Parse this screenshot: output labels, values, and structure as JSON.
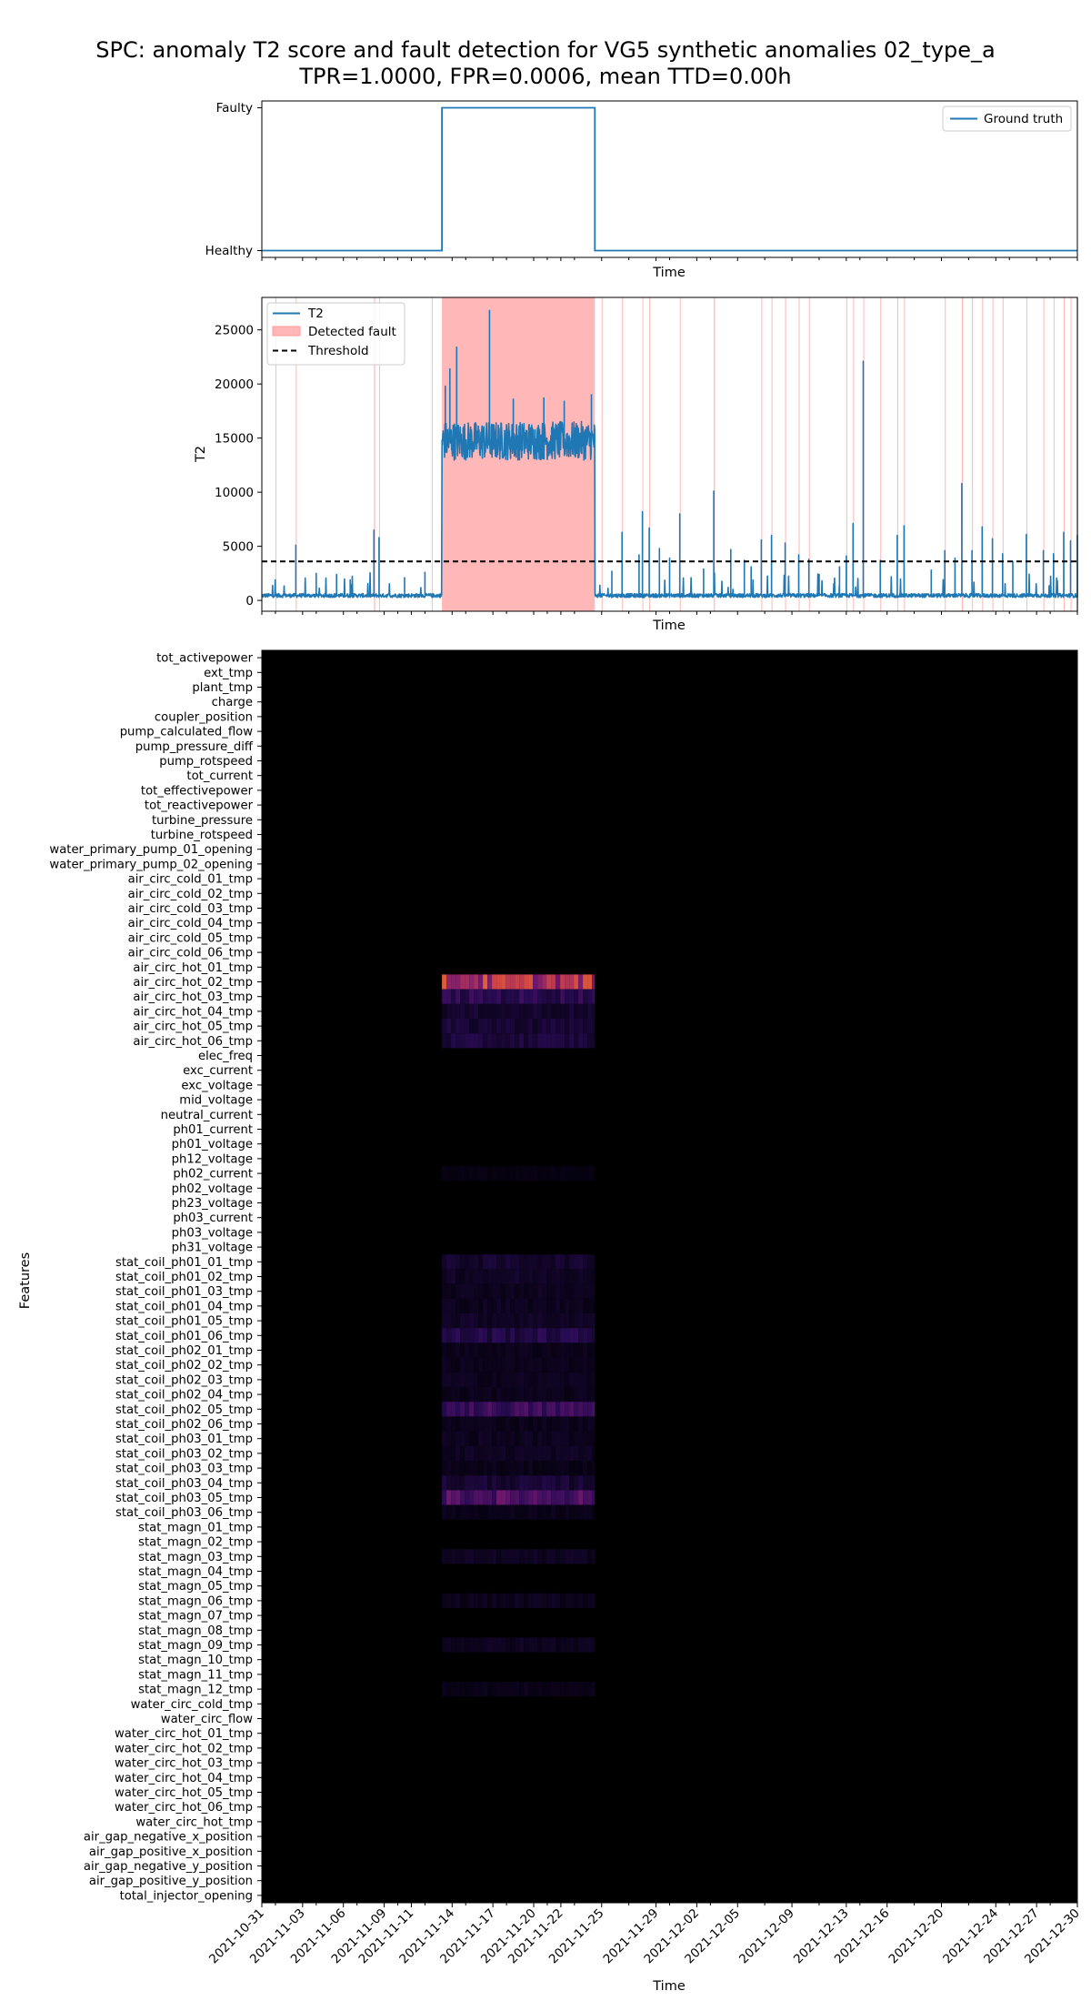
{
  "figure": {
    "title_line1": "SPC: anomaly T2 score and fault detection for VG5 synthetic anomalies 02_type_a",
    "title_line2": "TPR=1.0000, FPR=0.0006, mean TTD=0.00h"
  },
  "colors": {
    "t2_line": "#1f77b4",
    "detected_fault": "#ff9999",
    "threshold": "#000000",
    "heatmap_background": "#000000"
  },
  "chart_data": [
    {
      "type": "line",
      "name": "ground-truth-panel",
      "xlabel": "Time",
      "ylabel": "",
      "y_tick_labels": [
        "Healthy",
        "Faulty"
      ],
      "x_range": [
        "2021-10-31",
        "2021-12-30"
      ],
      "legend": {
        "placement": "top-right",
        "entries": [
          "Ground truth"
        ]
      },
      "series": [
        {
          "name": "Ground truth",
          "x": [
            "2021-10-31",
            "2021-11-13 06:00",
            "2021-11-13 06:00",
            "2021-11-24 12:00",
            "2021-11-24 12:00",
            "2021-12-30"
          ],
          "y": [
            0,
            0,
            1,
            1,
            0,
            0
          ]
        }
      ]
    },
    {
      "type": "line",
      "name": "t2-panel",
      "xlabel": "Time",
      "ylabel": "T2",
      "ylim": [
        -1000,
        28000
      ],
      "y_ticks": [
        0,
        5000,
        10000,
        15000,
        20000,
        25000
      ],
      "x_range": [
        "2021-10-31",
        "2021-12-30"
      ],
      "threshold": 3600,
      "legend": {
        "placement": "top-left",
        "entries": [
          "T2",
          "Detected fault",
          "Threshold"
        ]
      },
      "fault_span": [
        "2021-11-13 06:00",
        "2021-11-24 12:00"
      ],
      "baseline_level": 450,
      "fault_band": [
        12200,
        17300
      ],
      "false_alarm_spikes": [
        {
          "x": "2021-11-01 00:00",
          "y": 900
        },
        {
          "x": "2021-11-02 12:00",
          "y": 5100
        },
        {
          "x": "2021-11-04 00:00",
          "y": 2500
        },
        {
          "x": "2021-11-05 12:00",
          "y": 2400
        },
        {
          "x": "2021-11-06 12:00",
          "y": 1900
        },
        {
          "x": "2021-11-08 06:00",
          "y": 6500
        },
        {
          "x": "2021-11-08 15:00",
          "y": 5800
        },
        {
          "x": "2021-11-10 12:00",
          "y": 2100
        },
        {
          "x": "2021-11-12 00:00",
          "y": 2600
        },
        {
          "x": "2021-11-25 18:00",
          "y": 2700
        },
        {
          "x": "2021-11-26 12:00",
          "y": 6300
        },
        {
          "x": "2021-11-27 18:00",
          "y": 4200
        },
        {
          "x": "2021-11-28 00:00",
          "y": 8200
        },
        {
          "x": "2021-11-28 12:00",
          "y": 6700
        },
        {
          "x": "2021-11-29 06:00",
          "y": 4800
        },
        {
          "x": "2021-11-30 00:00",
          "y": 3900
        },
        {
          "x": "2021-11-30 18:00",
          "y": 8000
        },
        {
          "x": "2021-12-02 12:00",
          "y": 2900
        },
        {
          "x": "2021-12-03 06:00",
          "y": 10100
        },
        {
          "x": "2021-12-04 12:00",
          "y": 4700
        },
        {
          "x": "2021-12-05 12:00",
          "y": 3700
        },
        {
          "x": "2021-12-06 00:00",
          "y": 3100
        },
        {
          "x": "2021-12-06 18:00",
          "y": 5600
        },
        {
          "x": "2021-12-07 12:00",
          "y": 6000
        },
        {
          "x": "2021-12-08 12:00",
          "y": 5300
        },
        {
          "x": "2021-12-09 12:00",
          "y": 4200
        },
        {
          "x": "2021-12-10 06:00",
          "y": 3800
        },
        {
          "x": "2021-12-11 00:00",
          "y": 2400
        },
        {
          "x": "2021-12-12 12:00",
          "y": 3100
        },
        {
          "x": "2021-12-13 00:00",
          "y": 4100
        },
        {
          "x": "2021-12-13 12:00",
          "y": 7100
        },
        {
          "x": "2021-12-14 06:00",
          "y": 22100
        },
        {
          "x": "2021-12-15 12:00",
          "y": 3700
        },
        {
          "x": "2021-12-16 18:00",
          "y": 6000
        },
        {
          "x": "2021-12-17 06:00",
          "y": 6900
        },
        {
          "x": "2021-12-19 06:00",
          "y": 2800
        },
        {
          "x": "2021-12-20 06:00",
          "y": 4600
        },
        {
          "x": "2021-12-21 00:00",
          "y": 3900
        },
        {
          "x": "2021-12-21 12:00",
          "y": 10800
        },
        {
          "x": "2021-12-22 06:00",
          "y": 4600
        },
        {
          "x": "2021-12-23 00:00",
          "y": 6800
        },
        {
          "x": "2021-12-23 18:00",
          "y": 5700
        },
        {
          "x": "2021-12-24 12:00",
          "y": 4300
        },
        {
          "x": "2021-12-25 06:00",
          "y": 3600
        },
        {
          "x": "2021-12-26 06:00",
          "y": 6100
        },
        {
          "x": "2021-12-27 12:00",
          "y": 4600
        },
        {
          "x": "2021-12-28 06:00",
          "y": 4300
        },
        {
          "x": "2021-12-29 00:00",
          "y": 6300
        },
        {
          "x": "2021-12-29 12:00",
          "y": 5500
        },
        {
          "x": "2021-12-30 00:00",
          "y": 6000
        }
      ],
      "fault_peaks": [
        {
          "x": "2021-11-13 12:00",
          "y": 19800
        },
        {
          "x": "2021-11-13 20:00",
          "y": 21400
        },
        {
          "x": "2021-11-14 08:00",
          "y": 23400
        },
        {
          "x": "2021-11-16 18:00",
          "y": 26800
        },
        {
          "x": "2021-11-18 12:00",
          "y": 18600
        },
        {
          "x": "2021-11-20 18:00",
          "y": 18700
        },
        {
          "x": "2021-11-22 06:00",
          "y": 18400
        },
        {
          "x": "2021-11-24 06:00",
          "y": 19000
        }
      ],
      "detected_fault_intervals": [
        [
          "2021-11-01 00:00",
          "2021-11-01 01:00"
        ],
        [
          "2021-11-02 12:00",
          "2021-11-02 13:00"
        ],
        [
          "2021-11-08 06:00",
          "2021-11-08 08:00"
        ],
        [
          "2021-11-08 15:00",
          "2021-11-08 16:00"
        ],
        [
          "2021-11-12 12:00",
          "2021-11-12 13:00"
        ],
        [
          "2021-11-13 06:00",
          "2021-11-24 12:00"
        ],
        [
          "2021-11-25 00:00",
          "2021-11-25 01:00"
        ],
        [
          "2021-11-26 12:00",
          "2021-11-26 13:00"
        ],
        [
          "2021-11-28 00:00",
          "2021-11-28 01:00"
        ],
        [
          "2021-11-28 12:00",
          "2021-11-28 13:00"
        ],
        [
          "2021-11-30 18:00",
          "2021-11-30 19:00"
        ],
        [
          "2021-12-03 06:00",
          "2021-12-03 08:00"
        ],
        [
          "2021-12-06 18:00",
          "2021-12-06 19:00"
        ],
        [
          "2021-12-07 12:00",
          "2021-12-07 13:00"
        ],
        [
          "2021-12-08 12:00",
          "2021-12-08 13:00"
        ],
        [
          "2021-12-09 12:00",
          "2021-12-09 13:00"
        ],
        [
          "2021-12-10 06:00",
          "2021-12-10 07:00"
        ],
        [
          "2021-12-13 00:00",
          "2021-12-13 01:00"
        ],
        [
          "2021-12-13 12:00",
          "2021-12-13 13:00"
        ],
        [
          "2021-12-14 06:00",
          "2021-12-14 07:00"
        ],
        [
          "2021-12-15 12:00",
          "2021-12-15 13:00"
        ],
        [
          "2021-12-16 18:00",
          "2021-12-16 19:00"
        ],
        [
          "2021-12-17 06:00",
          "2021-12-17 07:00"
        ],
        [
          "2021-12-20 06:00",
          "2021-12-20 07:00"
        ],
        [
          "2021-12-21 12:00",
          "2021-12-21 14:00"
        ],
        [
          "2021-12-22 06:00",
          "2021-12-22 07:00"
        ],
        [
          "2021-12-23 00:00",
          "2021-12-23 01:00"
        ],
        [
          "2021-12-23 18:00",
          "2021-12-23 19:00"
        ],
        [
          "2021-12-24 12:00",
          "2021-12-24 13:00"
        ],
        [
          "2021-12-26 06:00",
          "2021-12-26 07:00"
        ],
        [
          "2021-12-27 12:00",
          "2021-12-27 13:00"
        ],
        [
          "2021-12-28 06:00",
          "2021-12-28 07:00"
        ],
        [
          "2021-12-29 00:00",
          "2021-12-29 01:00"
        ],
        [
          "2021-12-29 12:00",
          "2021-12-29 13:00"
        ],
        [
          "2021-12-30 00:00",
          "2021-12-30 01:00"
        ]
      ]
    },
    {
      "type": "heatmap",
      "name": "feature-contribution-heatmap",
      "xlabel": "Time",
      "ylabel": "Features",
      "x_range": [
        "2021-10-31",
        "2021-12-30"
      ],
      "x_tick_labels": [
        "2021-10-31",
        "2021-11-03",
        "2021-11-06",
        "2021-11-09",
        "2021-11-11",
        "2021-11-14",
        "2021-11-17",
        "2021-11-20",
        "2021-11-22",
        "2021-11-25",
        "2021-11-29",
        "2021-12-02",
        "2021-12-05",
        "2021-12-09",
        "2021-12-13",
        "2021-12-16",
        "2021-12-20",
        "2021-12-24",
        "2021-12-27",
        "2021-12-30"
      ],
      "features": [
        "tot_activepower",
        "ext_tmp",
        "plant_tmp",
        "charge",
        "coupler_position",
        "pump_calculated_flow",
        "pump_pressure_diff",
        "pump_rotspeed",
        "tot_current",
        "tot_effectivepower",
        "tot_reactivepower",
        "turbine_pressure",
        "turbine_rotspeed",
        "water_primary_pump_01_opening",
        "water_primary_pump_02_opening",
        "air_circ_cold_01_tmp",
        "air_circ_cold_02_tmp",
        "air_circ_cold_03_tmp",
        "air_circ_cold_04_tmp",
        "air_circ_cold_05_tmp",
        "air_circ_cold_06_tmp",
        "air_circ_hot_01_tmp",
        "air_circ_hot_02_tmp",
        "air_circ_hot_03_tmp",
        "air_circ_hot_04_tmp",
        "air_circ_hot_05_tmp",
        "air_circ_hot_06_tmp",
        "elec_freq",
        "exc_current",
        "exc_voltage",
        "mid_voltage",
        "neutral_current",
        "ph01_current",
        "ph01_voltage",
        "ph12_voltage",
        "ph02_current",
        "ph02_voltage",
        "ph23_voltage",
        "ph03_current",
        "ph03_voltage",
        "ph31_voltage",
        "stat_coil_ph01_01_tmp",
        "stat_coil_ph01_02_tmp",
        "stat_coil_ph01_03_tmp",
        "stat_coil_ph01_04_tmp",
        "stat_coil_ph01_05_tmp",
        "stat_coil_ph01_06_tmp",
        "stat_coil_ph02_01_tmp",
        "stat_coil_ph02_02_tmp",
        "stat_coil_ph02_03_tmp",
        "stat_coil_ph02_04_tmp",
        "stat_coil_ph02_05_tmp",
        "stat_coil_ph02_06_tmp",
        "stat_coil_ph03_01_tmp",
        "stat_coil_ph03_02_tmp",
        "stat_coil_ph03_03_tmp",
        "stat_coil_ph03_04_tmp",
        "stat_coil_ph03_05_tmp",
        "stat_coil_ph03_06_tmp",
        "stat_magn_01_tmp",
        "stat_magn_02_tmp",
        "stat_magn_03_tmp",
        "stat_magn_04_tmp",
        "stat_magn_05_tmp",
        "stat_magn_06_tmp",
        "stat_magn_07_tmp",
        "stat_magn_08_tmp",
        "stat_magn_09_tmp",
        "stat_magn_10_tmp",
        "stat_magn_11_tmp",
        "stat_magn_12_tmp",
        "water_circ_cold_tmp",
        "water_circ_flow",
        "water_circ_hot_01_tmp",
        "water_circ_hot_02_tmp",
        "water_circ_hot_03_tmp",
        "water_circ_hot_04_tmp",
        "water_circ_hot_05_tmp",
        "water_circ_hot_06_tmp",
        "water_circ_hot_tmp",
        "air_gap_negative_x_position",
        "air_gap_positive_x_position",
        "air_gap_negative_y_position",
        "air_gap_positive_y_position",
        "total_injector_opening"
      ],
      "fault_window": [
        "2021-11-13 06:00",
        "2021-11-24 12:00"
      ],
      "fault_intensity": {
        "air_circ_hot_02_tmp": 0.75,
        "stat_coil_ph03_05_tmp": 0.38,
        "stat_coil_ph02_05_tmp": 0.3,
        "air_circ_hot_03_tmp": 0.24,
        "stat_coil_ph01_06_tmp": 0.2,
        "air_circ_hot_06_tmp": 0.16,
        "air_circ_hot_05_tmp": 0.14,
        "air_circ_hot_04_tmp": 0.12,
        "stat_coil_ph03_04_tmp": 0.14,
        "stat_coil_ph01_01_tmp": 0.12,
        "stat_coil_ph01_02_tmp": 0.1,
        "stat_coil_ph01_03_tmp": 0.08,
        "stat_coil_ph01_04_tmp": 0.08,
        "stat_coil_ph01_05_tmp": 0.1,
        "stat_coil_ph02_01_tmp": 0.07,
        "stat_coil_ph02_02_tmp": 0.07,
        "stat_coil_ph02_03_tmp": 0.08,
        "stat_coil_ph02_04_tmp": 0.07,
        "stat_coil_ph02_06_tmp": 0.07,
        "stat_coil_ph03_01_tmp": 0.08,
        "stat_coil_ph03_02_tmp": 0.09,
        "stat_coil_ph03_03_tmp": 0.06,
        "stat_coil_ph03_06_tmp": 0.06,
        "stat_magn_03_tmp": 0.08,
        "stat_magn_06_tmp": 0.07,
        "stat_magn_09_tmp": 0.08,
        "stat_magn_12_tmp": 0.06,
        "ph02_current": 0.04
      }
    }
  ]
}
